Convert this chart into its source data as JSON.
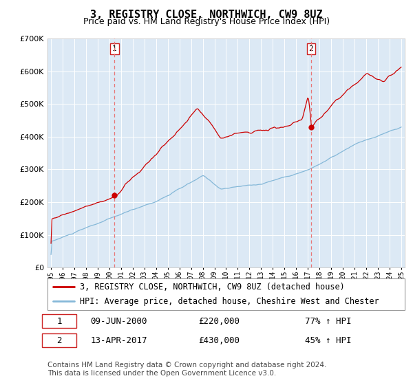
{
  "title": "3, REGISTRY CLOSE, NORTHWICH, CW9 8UZ",
  "subtitle": "Price paid vs. HM Land Registry's House Price Index (HPI)",
  "ylim": [
    0,
    700000
  ],
  "yticks": [
    0,
    100000,
    200000,
    300000,
    400000,
    500000,
    600000,
    700000
  ],
  "year_start": 1995,
  "year_end": 2025,
  "background_color": "#ffffff",
  "plot_bg_color": "#dce9f5",
  "grid_color": "#ffffff",
  "red_line_color": "#cc0000",
  "blue_line_color": "#85b8d8",
  "sale1_year": 2000.44,
  "sale1_price": 220000,
  "sale1_label": "1",
  "sale1_date": "09-JUN-2000",
  "sale1_pct": "77% ↑ HPI",
  "sale2_year": 2017.28,
  "sale2_price": 430000,
  "sale2_label": "2",
  "sale2_date": "13-APR-2017",
  "sale2_pct": "45% ↑ HPI",
  "legend1": "3, REGISTRY CLOSE, NORTHWICH, CW9 8UZ (detached house)",
  "legend2": "HPI: Average price, detached house, Cheshire West and Chester",
  "footnote1": "Contains HM Land Registry data © Crown copyright and database right 2024.",
  "footnote2": "This data is licensed under the Open Government Licence v3.0.",
  "title_fontsize": 11,
  "subtitle_fontsize": 9,
  "tick_fontsize": 8,
  "legend_fontsize": 8.5,
  "footnote_fontsize": 7.5
}
